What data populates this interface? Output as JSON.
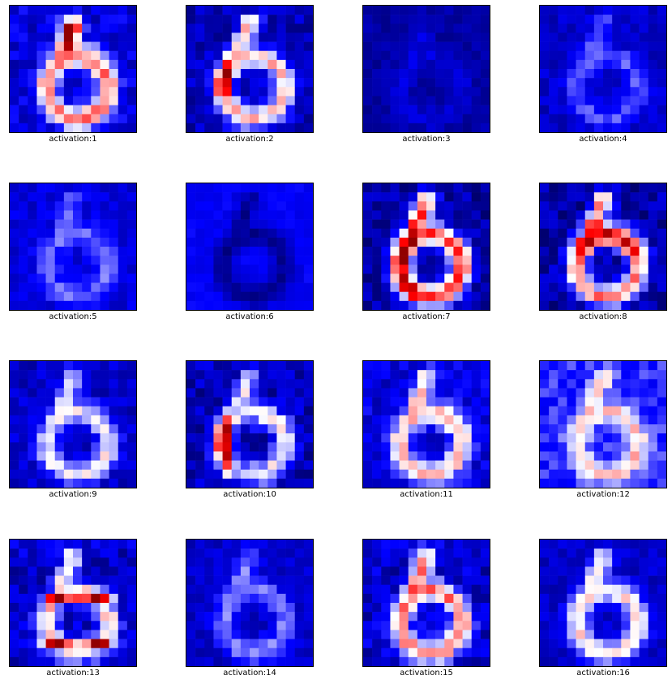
{
  "colors": {
    "low": "#0000ff",
    "mid": "#ffffff",
    "high": "#ff0000",
    "max": "#800000",
    "deep": "#00008b"
  },
  "chart_data": {
    "type": "heatmap",
    "grid": "14x14 activation maps",
    "layout": {
      "rows": 4,
      "cols": 4
    },
    "colormap": "bwr",
    "panels": [
      {
        "label": "activation:1",
        "pattern": "six_strong_top"
      },
      {
        "label": "activation:2",
        "pattern": "six_left_red"
      },
      {
        "label": "activation:3",
        "pattern": "faint_dark"
      },
      {
        "label": "activation:4",
        "pattern": "faint_ring"
      },
      {
        "label": "activation:5",
        "pattern": "faint_light"
      },
      {
        "label": "activation:6",
        "pattern": "dark_ring"
      },
      {
        "label": "activation:7",
        "pattern": "six_strong_left"
      },
      {
        "label": "activation:8",
        "pattern": "six_red_core"
      },
      {
        "label": "activation:9",
        "pattern": "light_six"
      },
      {
        "label": "activation:10",
        "pattern": "red_stroke_left"
      },
      {
        "label": "activation:11",
        "pattern": "ring_light"
      },
      {
        "label": "activation:12",
        "pattern": "pale_bowl"
      },
      {
        "label": "activation:13",
        "pattern": "bands"
      },
      {
        "label": "activation:14",
        "pattern": "faint_six"
      },
      {
        "label": "activation:15",
        "pattern": "six_pink"
      },
      {
        "label": "activation:16",
        "pattern": "white_six"
      }
    ]
  }
}
